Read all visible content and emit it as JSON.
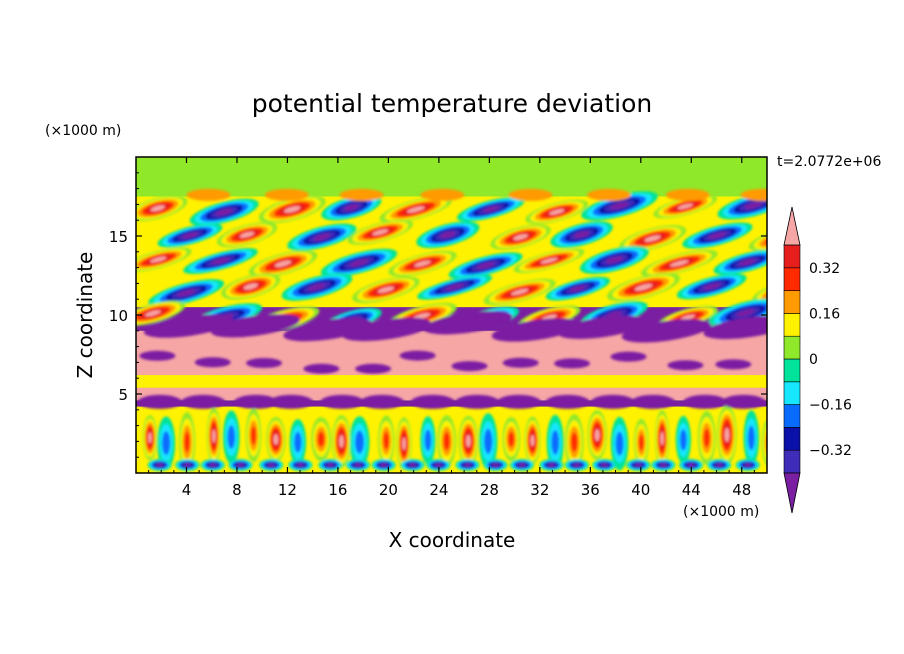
{
  "chart_data": {
    "type": "heatmap",
    "title": "potential temperature deviation",
    "xlabel": "X coordinate",
    "ylabel": "Z coordinate",
    "x_unit": "(×1000 m)",
    "y_unit": "(×1000 m)",
    "time_label": "t=2.0772e+06",
    "xlim": [
      0,
      50
    ],
    "ylim": [
      0,
      20
    ],
    "x_ticks": [
      4,
      8,
      12,
      16,
      20,
      24,
      28,
      32,
      36,
      40,
      44,
      48
    ],
    "x_tick_labels": [
      "4",
      "8",
      "12",
      "16",
      "20",
      "24",
      "28",
      "32",
      "36",
      "40",
      "44",
      "48"
    ],
    "y_ticks": [
      5,
      10,
      15
    ],
    "y_tick_labels": [
      "5",
      "10",
      "15"
    ],
    "colorbar": {
      "levels": [
        -0.4,
        -0.32,
        -0.24,
        -0.16,
        -0.08,
        0,
        0.08,
        0.16,
        0.24,
        0.32,
        0.4
      ],
      "labeled_levels": [
        -0.32,
        -0.16,
        0,
        0.16,
        0.32
      ],
      "labels": [
        "-0.32",
        "-0.16",
        "0",
        "0.16",
        "0.32"
      ],
      "colors": [
        "#7b1fa2",
        "#3f2cb8",
        "#0a10a8",
        "#0a6cff",
        "#17e6ff",
        "#00e39a",
        "#8fe82a",
        "#fff200",
        "#ff9a00",
        "#ff2a00",
        "#e61e1e",
        "#f7a6a6"
      ],
      "extend": "both"
    },
    "bands": [
      {
        "z": [
          0.0,
          4.2
        ],
        "description_values": "mixed"
      },
      {
        "z": [
          4.2,
          4.6
        ],
        "value": -0.45
      },
      {
        "z": [
          4.6,
          5.4
        ],
        "value": 0.45
      },
      {
        "z": [
          5.4,
          6.2
        ],
        "value": 0.1
      },
      {
        "z": [
          6.2,
          9.0
        ],
        "value": 0.45
      },
      {
        "z": [
          9.0,
          10.5
        ],
        "value": -0.45
      },
      {
        "z": [
          10.5,
          17.5
        ],
        "description_values": "waves"
      },
      {
        "z": [
          17.5,
          20.0
        ],
        "value": 0.05
      }
    ]
  }
}
